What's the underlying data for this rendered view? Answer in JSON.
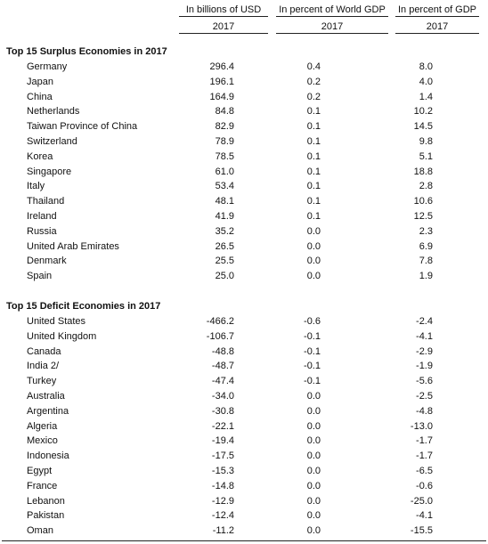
{
  "headers": {
    "usd": "In billions of USD",
    "world": "In percent of World GDP",
    "gdp": "In percent of  GDP",
    "year": "2017"
  },
  "surplus": {
    "title": "Top 15 Surplus Economies in 2017",
    "rows": [
      {
        "name": "Germany",
        "usd": "296.4",
        "world": "0.4",
        "gdp": "8.0"
      },
      {
        "name": "Japan",
        "usd": "196.1",
        "world": "0.2",
        "gdp": "4.0"
      },
      {
        "name": "China",
        "usd": "164.9",
        "world": "0.2",
        "gdp": "1.4"
      },
      {
        "name": "Netherlands",
        "usd": "84.8",
        "world": "0.1",
        "gdp": "10.2"
      },
      {
        "name": "Taiwan Province of China",
        "usd": "82.9",
        "world": "0.1",
        "gdp": "14.5"
      },
      {
        "name": "Switzerland",
        "usd": "78.9",
        "world": "0.1",
        "gdp": "9.8"
      },
      {
        "name": "Korea",
        "usd": "78.5",
        "world": "0.1",
        "gdp": "5.1"
      },
      {
        "name": "Singapore",
        "usd": "61.0",
        "world": "0.1",
        "gdp": "18.8"
      },
      {
        "name": "Italy",
        "usd": "53.4",
        "world": "0.1",
        "gdp": "2.8"
      },
      {
        "name": "Thailand",
        "usd": "48.1",
        "world": "0.1",
        "gdp": "10.6"
      },
      {
        "name": "Ireland",
        "usd": "41.9",
        "world": "0.1",
        "gdp": "12.5"
      },
      {
        "name": "Russia",
        "usd": "35.2",
        "world": "0.0",
        "gdp": "2.3"
      },
      {
        "name": "United Arab Emirates",
        "usd": "26.5",
        "world": "0.0",
        "gdp": "6.9"
      },
      {
        "name": "Denmark",
        "usd": "25.5",
        "world": "0.0",
        "gdp": "7.8"
      },
      {
        "name": "Spain",
        "usd": "25.0",
        "world": "0.0",
        "gdp": "1.9"
      }
    ]
  },
  "deficit": {
    "title": "Top 15 Deficit Economies in 2017",
    "rows": [
      {
        "name": "United States",
        "usd": "-466.2",
        "world": "-0.6",
        "gdp": "-2.4"
      },
      {
        "name": "United Kingdom",
        "usd": "-106.7",
        "world": "-0.1",
        "gdp": "-4.1"
      },
      {
        "name": "Canada",
        "usd": "-48.8",
        "world": "-0.1",
        "gdp": "-2.9"
      },
      {
        "name": "India  2/",
        "usd": "-48.7",
        "world": "-0.1",
        "gdp": "-1.9"
      },
      {
        "name": "Turkey",
        "usd": "-47.4",
        "world": "-0.1",
        "gdp": "-5.6"
      },
      {
        "name": "Australia",
        "usd": "-34.0",
        "world": "0.0",
        "gdp": "-2.5"
      },
      {
        "name": "Argentina",
        "usd": "-30.8",
        "world": "0.0",
        "gdp": "-4.8"
      },
      {
        "name": "Algeria",
        "usd": "-22.1",
        "world": "0.0",
        "gdp": "-13.0"
      },
      {
        "name": "Mexico",
        "usd": "-19.4",
        "world": "0.0",
        "gdp": "-1.7"
      },
      {
        "name": "Indonesia",
        "usd": "-17.5",
        "world": "0.0",
        "gdp": "-1.7"
      },
      {
        "name": "Egypt",
        "usd": "-15.3",
        "world": "0.0",
        "gdp": "-6.5"
      },
      {
        "name": "France",
        "usd": "-14.8",
        "world": "0.0",
        "gdp": "-0.6"
      },
      {
        "name": "Lebanon",
        "usd": "-12.9",
        "world": "0.0",
        "gdp": "-25.0"
      },
      {
        "name": "Pakistan",
        "usd": "-12.4",
        "world": "0.0",
        "gdp": "-4.1"
      },
      {
        "name": "Oman",
        "usd": "-11.2",
        "world": "0.0",
        "gdp": "-15.5"
      }
    ]
  }
}
